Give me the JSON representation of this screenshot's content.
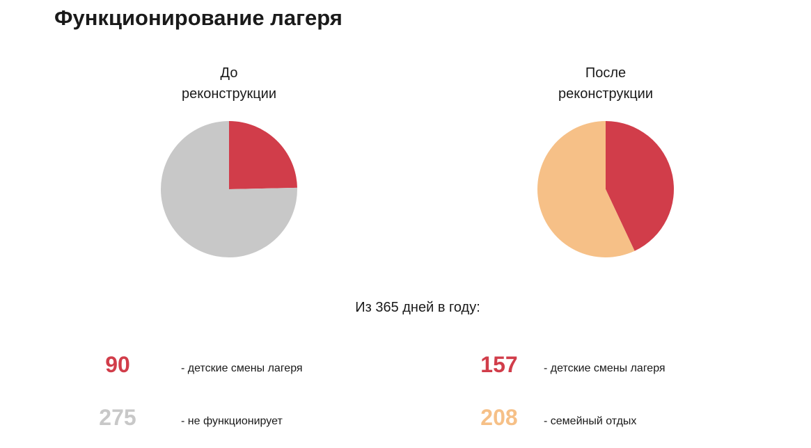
{
  "title": "Функционирование лагеря",
  "subtitle": "Из 365 дней в году:",
  "colors": {
    "red": "#D13D4A",
    "gray": "#C8C8C8",
    "peach": "#F6C087"
  },
  "chart_data": [
    {
      "type": "pie",
      "title_lines": [
        "До",
        "реконструкции"
      ],
      "slices": [
        {
          "label": "- детские смены лагеря",
          "value": 90,
          "color": "#D13D4A"
        },
        {
          "label": "- не функционирует",
          "value": 275,
          "color": "#C8C8C8"
        }
      ]
    },
    {
      "type": "pie",
      "title_lines": [
        "После",
        "реконструкции"
      ],
      "slices": [
        {
          "label": "- детские смены лагеря",
          "value": 157,
          "color": "#D13D4A"
        },
        {
          "label": "- семейный отдых",
          "value": 208,
          "color": "#F6C087"
        }
      ]
    }
  ]
}
